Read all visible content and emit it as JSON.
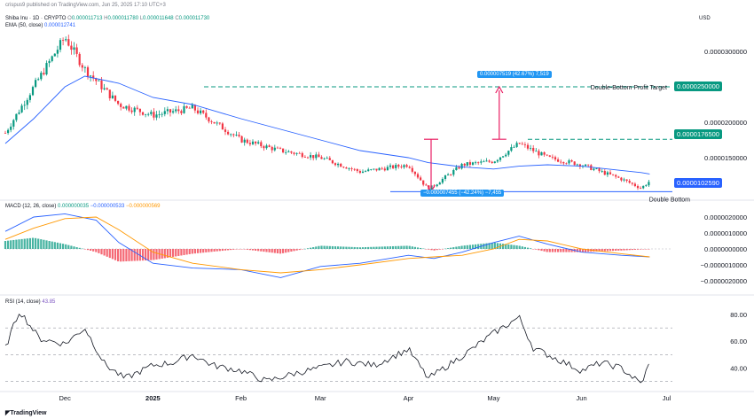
{
  "meta": {
    "publisher": "crispus9 published on TradingView.com, Jun 25, 2025 17:10 UTC+3",
    "currency": "USD",
    "footer": "TradingView"
  },
  "header": {
    "symbol": "Shiba Inu · 1D · CRYPTO",
    "ohlc": [
      {
        "label": "O",
        "value": "0.000011713"
      },
      {
        "label": "H",
        "value": "0.000011780"
      },
      {
        "label": "L",
        "value": "0.000011648"
      },
      {
        "label": "C",
        "value": "0.000011730"
      }
    ],
    "ema_label": "EMA (50, close)",
    "ema_value": "0.000012741"
  },
  "price_levels": [
    {
      "value": 2.5e-05,
      "label": "0.0000250000",
      "color": "#089981",
      "text": "Double-Bottom Profit Target"
    },
    {
      "value": 1.76e-05,
      "label": "0.0000176500",
      "color": "#089981",
      "text": ""
    },
    {
      "value": 1.02e-05,
      "label": "0.0000102590",
      "color": "#2962ff",
      "text": "Double Bottom"
    }
  ],
  "measure_labels": {
    "up": "0.000007519 (42.67%) 7,519",
    "down": "−0.000007455 (−42.24%) −7,455"
  },
  "macd": {
    "label": "MACD (12, 26, close)",
    "v1": "0.000000035",
    "v2": "−0.000000533",
    "v3": "−0.000000569"
  },
  "rsi": {
    "label": "RSI (14, close)",
    "value": "43.85"
  },
  "colors": {
    "up": "#089981",
    "down": "#f23645",
    "ema": "#2962ff",
    "signal": "#ff9800",
    "rsi": "#131722",
    "measure": "#e91e63",
    "tag": "#2196f3"
  },
  "chart_data": [
    {
      "type": "candlestick",
      "title": "Shiba Inu · 1D · CRYPTO",
      "x": [
        "2024-11-10",
        "2024-11-20",
        "2024-12-01",
        "2024-12-08",
        "2024-12-20",
        "2025-01-01",
        "2025-01-15",
        "2025-02-01",
        "2025-02-15",
        "2025-03-01",
        "2025-03-15",
        "2025-04-01",
        "2025-04-08",
        "2025-04-20",
        "2025-05-01",
        "2025-05-10",
        "2025-05-20",
        "2025-06-01",
        "2025-06-15",
        "2025-06-22",
        "2025-06-25"
      ],
      "close": [
        1.85e-05,
        2.5e-05,
        3.2e-05,
        2.75e-05,
        2.25e-05,
        2.1e-05,
        2.2e-05,
        1.75e-05,
        1.6e-05,
        1.5e-05,
        1.3e-05,
        1.4e-05,
        1.05e-05,
        1.4e-05,
        1.45e-05,
        1.7e-05,
        1.5e-05,
        1.4e-05,
        1.2e-05,
        1.07e-05,
        1.17e-05
      ],
      "series": [
        {
          "name": "EMA (50, close)",
          "values": [
            1.7e-05,
            2.05e-05,
            2.5e-05,
            2.65e-05,
            2.55e-05,
            2.35e-05,
            2.25e-05,
            2.05e-05,
            1.9e-05,
            1.75e-05,
            1.6e-05,
            1.5e-05,
            1.43e-05,
            1.37e-05,
            1.34e-05,
            1.38e-05,
            1.4e-05,
            1.38e-05,
            1.32e-05,
            1.29e-05,
            1.27e-05
          ]
        }
      ],
      "ylim": [
        9.5e-06,
        3.55e-05
      ],
      "yticks": [
        {
          "v": 3e-05,
          "label": "0.0000300000"
        },
        {
          "v": 2e-05,
          "label": "0.0000200000"
        },
        {
          "v": 1.5e-05,
          "label": "0.0000150000"
        }
      ],
      "xticks": [
        {
          "date": "2024-12-01",
          "label": "Dec"
        },
        {
          "date": "2025-01-01",
          "label": "2025"
        },
        {
          "date": "2025-02-01",
          "label": "Feb"
        },
        {
          "date": "2025-03-01",
          "label": "Mar"
        },
        {
          "date": "2025-04-01",
          "label": "Apr"
        },
        {
          "date": "2025-05-01",
          "label": "May"
        },
        {
          "date": "2025-06-01",
          "label": "Jun"
        },
        {
          "date": "2025-07-01",
          "label": "Jul"
        }
      ]
    },
    {
      "type": "line",
      "title": "MACD (12, 26, close)",
      "x": [
        "2024-11-10",
        "2024-11-20",
        "2024-12-01",
        "2024-12-12",
        "2024-12-20",
        "2025-01-01",
        "2025-01-15",
        "2025-02-01",
        "2025-02-15",
        "2025-03-01",
        "2025-03-15",
        "2025-04-01",
        "2025-04-10",
        "2025-04-20",
        "2025-05-01",
        "2025-05-10",
        "2025-05-20",
        "2025-06-01",
        "2025-06-15",
        "2025-06-25"
      ],
      "series": [
        {
          "name": "MACD",
          "values": [
            1.1e-06,
            2e-06,
            2.2e-06,
            1.8e-06,
            4e-07,
            -9e-07,
            -1.2e-06,
            -1.3e-06,
            -1.8e-06,
            -1.1e-06,
            -9e-07,
            -4e-07,
            -6e-07,
            -2e-07,
            4e-07,
            8e-07,
            3e-07,
            -2e-07,
            -4e-07,
            -5e-07
          ]
        },
        {
          "name": "Signal",
          "values": [
            6e-07,
            1.3e-06,
            1.9e-06,
            2e-06,
            1.2e-06,
            -2e-07,
            -9e-07,
            -1.3e-06,
            -1.5e-06,
            -1.3e-06,
            -1e-06,
            -6e-07,
            -5e-07,
            -4e-07,
            0.0,
            6e-07,
            5e-07,
            0.0,
            -3e-07,
            -5e-07
          ]
        }
      ],
      "ylim": [
        -2.5e-06,
        2.5e-06
      ],
      "yticks": [
        {
          "v": 2e-06,
          "label": "0.0000020000"
        },
        {
          "v": 1e-06,
          "label": "0.0000010000"
        },
        {
          "v": 0,
          "label": "0.0000000000"
        },
        {
          "v": -1e-06,
          "label": "−0.0000010000"
        },
        {
          "v": -2e-06,
          "label": "−0.0000020000"
        }
      ]
    },
    {
      "type": "line",
      "title": "RSI (14, close)",
      "x": [
        "2024-11-10",
        "2024-11-15",
        "2024-11-22",
        "2024-12-01",
        "2024-12-08",
        "2024-12-15",
        "2024-12-22",
        "2025-01-01",
        "2025-01-08",
        "2025-01-15",
        "2025-01-22",
        "2025-02-01",
        "2025-02-10",
        "2025-02-20",
        "2025-03-01",
        "2025-03-10",
        "2025-03-20",
        "2025-04-01",
        "2025-04-08",
        "2025-04-15",
        "2025-04-22",
        "2025-05-01",
        "2025-05-10",
        "2025-05-15",
        "2025-05-22",
        "2025-06-01",
        "2025-06-08",
        "2025-06-15",
        "2025-06-22",
        "2025-06-25"
      ],
      "values": [
        55,
        83,
        62,
        58,
        70,
        43,
        32,
        42,
        44,
        50,
        42,
        38,
        30,
        36,
        40,
        45,
        42,
        54,
        32,
        42,
        52,
        66,
        78,
        55,
        48,
        38,
        44,
        40,
        28,
        43.85
      ],
      "ylim": [
        25,
        90
      ],
      "yticks": [
        {
          "v": 80,
          "label": "80.00"
        },
        {
          "v": 60,
          "label": "60.00"
        },
        {
          "v": 40,
          "label": "40.00"
        }
      ]
    }
  ]
}
